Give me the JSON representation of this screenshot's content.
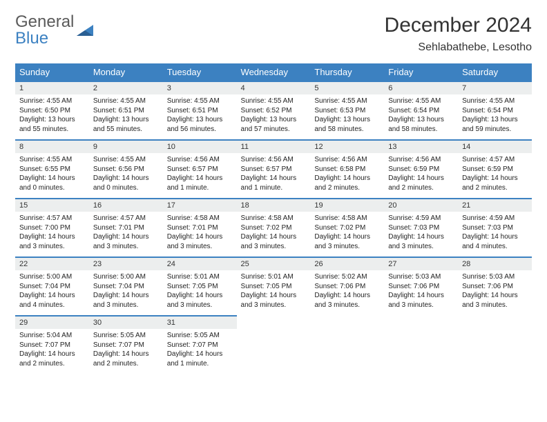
{
  "brand": {
    "line1": "General",
    "line2": "Blue",
    "color_gray": "#5a5a5a",
    "color_blue": "#3c81c1"
  },
  "title": "December 2024",
  "location": "Sehlabathebe, Lesotho",
  "colors": {
    "header_bg": "#3c81c1",
    "header_text": "#ffffff",
    "daynum_bg": "#eceeee",
    "border": "#3c81c1",
    "text": "#222222"
  },
  "weekdays": [
    "Sunday",
    "Monday",
    "Tuesday",
    "Wednesday",
    "Thursday",
    "Friday",
    "Saturday"
  ],
  "weeks": [
    [
      {
        "n": "1",
        "sunrise": "4:55 AM",
        "sunset": "6:50 PM",
        "daylight": "13 hours and 55 minutes."
      },
      {
        "n": "2",
        "sunrise": "4:55 AM",
        "sunset": "6:51 PM",
        "daylight": "13 hours and 55 minutes."
      },
      {
        "n": "3",
        "sunrise": "4:55 AM",
        "sunset": "6:51 PM",
        "daylight": "13 hours and 56 minutes."
      },
      {
        "n": "4",
        "sunrise": "4:55 AM",
        "sunset": "6:52 PM",
        "daylight": "13 hours and 57 minutes."
      },
      {
        "n": "5",
        "sunrise": "4:55 AM",
        "sunset": "6:53 PM",
        "daylight": "13 hours and 58 minutes."
      },
      {
        "n": "6",
        "sunrise": "4:55 AM",
        "sunset": "6:54 PM",
        "daylight": "13 hours and 58 minutes."
      },
      {
        "n": "7",
        "sunrise": "4:55 AM",
        "sunset": "6:54 PM",
        "daylight": "13 hours and 59 minutes."
      }
    ],
    [
      {
        "n": "8",
        "sunrise": "4:55 AM",
        "sunset": "6:55 PM",
        "daylight": "14 hours and 0 minutes."
      },
      {
        "n": "9",
        "sunrise": "4:55 AM",
        "sunset": "6:56 PM",
        "daylight": "14 hours and 0 minutes."
      },
      {
        "n": "10",
        "sunrise": "4:56 AM",
        "sunset": "6:57 PM",
        "daylight": "14 hours and 1 minute."
      },
      {
        "n": "11",
        "sunrise": "4:56 AM",
        "sunset": "6:57 PM",
        "daylight": "14 hours and 1 minute."
      },
      {
        "n": "12",
        "sunrise": "4:56 AM",
        "sunset": "6:58 PM",
        "daylight": "14 hours and 2 minutes."
      },
      {
        "n": "13",
        "sunrise": "4:56 AM",
        "sunset": "6:59 PM",
        "daylight": "14 hours and 2 minutes."
      },
      {
        "n": "14",
        "sunrise": "4:57 AM",
        "sunset": "6:59 PM",
        "daylight": "14 hours and 2 minutes."
      }
    ],
    [
      {
        "n": "15",
        "sunrise": "4:57 AM",
        "sunset": "7:00 PM",
        "daylight": "14 hours and 3 minutes."
      },
      {
        "n": "16",
        "sunrise": "4:57 AM",
        "sunset": "7:01 PM",
        "daylight": "14 hours and 3 minutes."
      },
      {
        "n": "17",
        "sunrise": "4:58 AM",
        "sunset": "7:01 PM",
        "daylight": "14 hours and 3 minutes."
      },
      {
        "n": "18",
        "sunrise": "4:58 AM",
        "sunset": "7:02 PM",
        "daylight": "14 hours and 3 minutes."
      },
      {
        "n": "19",
        "sunrise": "4:58 AM",
        "sunset": "7:02 PM",
        "daylight": "14 hours and 3 minutes."
      },
      {
        "n": "20",
        "sunrise": "4:59 AM",
        "sunset": "7:03 PM",
        "daylight": "14 hours and 3 minutes."
      },
      {
        "n": "21",
        "sunrise": "4:59 AM",
        "sunset": "7:03 PM",
        "daylight": "14 hours and 4 minutes."
      }
    ],
    [
      {
        "n": "22",
        "sunrise": "5:00 AM",
        "sunset": "7:04 PM",
        "daylight": "14 hours and 4 minutes."
      },
      {
        "n": "23",
        "sunrise": "5:00 AM",
        "sunset": "7:04 PM",
        "daylight": "14 hours and 3 minutes."
      },
      {
        "n": "24",
        "sunrise": "5:01 AM",
        "sunset": "7:05 PM",
        "daylight": "14 hours and 3 minutes."
      },
      {
        "n": "25",
        "sunrise": "5:01 AM",
        "sunset": "7:05 PM",
        "daylight": "14 hours and 3 minutes."
      },
      {
        "n": "26",
        "sunrise": "5:02 AM",
        "sunset": "7:06 PM",
        "daylight": "14 hours and 3 minutes."
      },
      {
        "n": "27",
        "sunrise": "5:03 AM",
        "sunset": "7:06 PM",
        "daylight": "14 hours and 3 minutes."
      },
      {
        "n": "28",
        "sunrise": "5:03 AM",
        "sunset": "7:06 PM",
        "daylight": "14 hours and 3 minutes."
      }
    ],
    [
      {
        "n": "29",
        "sunrise": "5:04 AM",
        "sunset": "7:07 PM",
        "daylight": "14 hours and 2 minutes."
      },
      {
        "n": "30",
        "sunrise": "5:05 AM",
        "sunset": "7:07 PM",
        "daylight": "14 hours and 2 minutes."
      },
      {
        "n": "31",
        "sunrise": "5:05 AM",
        "sunset": "7:07 PM",
        "daylight": "14 hours and 1 minute."
      },
      null,
      null,
      null,
      null
    ]
  ],
  "labels": {
    "sunrise": "Sunrise:",
    "sunset": "Sunset:",
    "daylight": "Daylight:"
  }
}
